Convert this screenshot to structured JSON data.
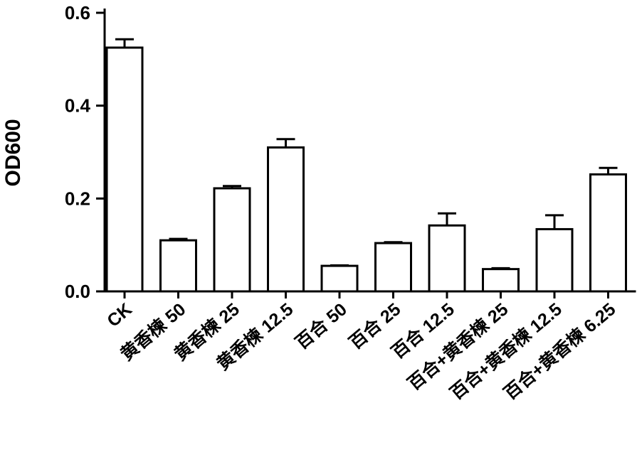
{
  "chart_data": {
    "type": "bar",
    "ylabel": "OD600",
    "xlabel": "",
    "ylim": [
      0,
      0.6
    ],
    "yticks": [
      0.0,
      0.2,
      0.4,
      0.6
    ],
    "ytick_labels": [
      "0.0",
      "0.2",
      "0.4",
      "0.6"
    ],
    "categories": [
      "CK",
      "黄香楝 50",
      "黄香楝 25",
      "黄香楝 12.5",
      "百合 50",
      "百合 25",
      "百合 12.5",
      "百合+黄香楝 25",
      "百合+黄香楝 12.5",
      "百合+黄香楝 6.25"
    ],
    "values": [
      0.525,
      0.11,
      0.222,
      0.31,
      0.055,
      0.104,
      0.142,
      0.048,
      0.134,
      0.252
    ],
    "errors": [
      0.018,
      0.003,
      0.005,
      0.018,
      0.001,
      0.002,
      0.026,
      0.002,
      0.03,
      0.014
    ],
    "bar_fill": "#ffffff",
    "bar_stroke": "#000000"
  }
}
